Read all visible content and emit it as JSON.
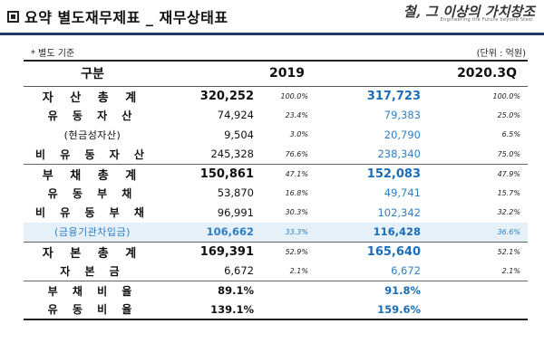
{
  "header": {
    "title": "요약 별도재무제표 _ 재무상태표",
    "logo_main": "철, 그 이상의 가치창조",
    "logo_sub": "Engineering the Future beyond Steel"
  },
  "note": "* 별도 기준",
  "unit": "(단위 : 억원)",
  "columns": {
    "label": "구분",
    "year1": "2019",
    "year2": "2020.3Q"
  },
  "rows": [
    {
      "label": "자 산 총 계",
      "v1": "320,252",
      "p1": "100.0%",
      "v2": "317,723",
      "p2": "100.0%"
    },
    {
      "label": "유 동 자 산",
      "v1": "74,924",
      "p1": "23.4%",
      "v2": "79,383",
      "p2": "25.0%"
    },
    {
      "label": "(현금성자산)",
      "v1": "9,504",
      "p1": "3.0%",
      "v2": "20,790",
      "p2": "6.5%"
    },
    {
      "label": "비 유 동 자 산",
      "v1": "245,328",
      "p1": "76.6%",
      "v2": "238,340",
      "p2": "75.0%"
    },
    {
      "label": "부 채 총 계",
      "v1": "150,861",
      "p1": "47.1%",
      "v2": "152,083",
      "p2": "47.9%"
    },
    {
      "label": "유 동 부 채",
      "v1": "53,870",
      "p1": "16.8%",
      "v2": "49,741",
      "p2": "15.7%"
    },
    {
      "label": "비 유 동 부 채",
      "v1": "96,991",
      "p1": "30.3%",
      "v2": "102,342",
      "p2": "32.2%"
    },
    {
      "label": "(금융기관차입금)",
      "v1": "106,662",
      "p1": "33.3%",
      "v2": "116,428",
      "p2": "36.6%"
    },
    {
      "label": "자 본 총 계",
      "v1": "169,391",
      "p1": "52.9%",
      "v2": "165,640",
      "p2": "52.1%"
    },
    {
      "label": "자 본 금",
      "v1": "6,672",
      "p1": "2.1%",
      "v2": "6,672",
      "p2": "2.1%"
    },
    {
      "label": "부 채 비 율",
      "v1": "89.1%",
      "p1": "",
      "v2": "91.8%",
      "p2": ""
    },
    {
      "label": "유 동 비 율",
      "v1": "139.1%",
      "p1": "",
      "v2": "159.6%",
      "p2": ""
    }
  ],
  "colors": {
    "accent_blue": "#2e7fc4",
    "highlight_bg": "#e6f0f8",
    "rule": "#1f3a6b"
  }
}
